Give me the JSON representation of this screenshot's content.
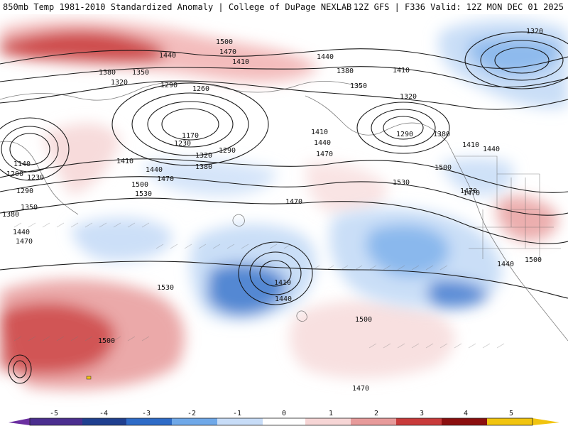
{
  "header": {
    "title_left": "850mb Temp 1981-2010 Standardized Anomaly | College of DuPage NEXLAB",
    "title_right": "12Z GFS | F336 Valid: 12Z MON DEC 01 2025"
  },
  "map": {
    "contour_labels": [
      {
        "text": "1500"
      },
      {
        "text": "1470"
      },
      {
        "text": "1440"
      },
      {
        "text": "1410"
      },
      {
        "text": "1380"
      },
      {
        "text": "1350"
      },
      {
        "text": "1320"
      },
      {
        "text": "1290"
      },
      {
        "text": "1260"
      },
      {
        "text": "1170"
      },
      {
        "text": "1230"
      },
      {
        "text": "1140"
      },
      {
        "text": "1200"
      },
      {
        "text": "1230"
      },
      {
        "text": "1290"
      },
      {
        "text": "1350"
      },
      {
        "text": "1380"
      },
      {
        "text": "1440"
      },
      {
        "text": "1470"
      },
      {
        "text": "1410"
      },
      {
        "text": "1440"
      },
      {
        "text": "1470"
      },
      {
        "text": "1500"
      },
      {
        "text": "1530"
      },
      {
        "text": "1320"
      },
      {
        "text": "1380"
      },
      {
        "text": "1290"
      },
      {
        "text": "1410"
      },
      {
        "text": "1440"
      },
      {
        "text": "1470"
      },
      {
        "text": "1500"
      },
      {
        "text": "1530"
      },
      {
        "text": "1470"
      },
      {
        "text": "1410"
      },
      {
        "text": "1440"
      },
      {
        "text": "1500"
      },
      {
        "text": "1530"
      },
      {
        "text": "1500"
      },
      {
        "text": "1470"
      },
      {
        "text": "1440"
      },
      {
        "text": "1410"
      },
      {
        "text": "1380"
      },
      {
        "text": "1350"
      },
      {
        "text": "1320"
      },
      {
        "text": "1290"
      },
      {
        "text": "1320"
      },
      {
        "text": "1380"
      },
      {
        "text": "1410"
      },
      {
        "text": "1440"
      },
      {
        "text": "1470"
      },
      {
        "text": "1500"
      },
      {
        "text": "1440"
      },
      {
        "text": "1470"
      }
    ]
  },
  "legend": {
    "ticks": [
      {
        "label": "-5"
      },
      {
        "label": "-4"
      },
      {
        "label": "-3"
      },
      {
        "label": "-2"
      },
      {
        "label": "-1"
      },
      {
        "label": "0"
      },
      {
        "label": "1"
      },
      {
        "label": "2"
      },
      {
        "label": "3"
      },
      {
        "label": "4"
      },
      {
        "label": "5"
      }
    ],
    "colors": [
      "#6b2fa0",
      "#1f3f8f",
      "#2e6bc7",
      "#6fa8e8",
      "#c7dcf7",
      "#ffffff",
      "#f6d5d5",
      "#e79a9a",
      "#c83a3a",
      "#8b0f0f",
      "#f1c40f"
    ]
  }
}
